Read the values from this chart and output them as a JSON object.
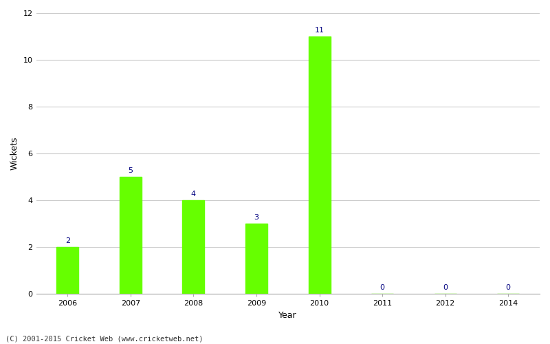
{
  "categories": [
    "2006",
    "2007",
    "2008",
    "2009",
    "2010",
    "2011",
    "2012",
    "2014"
  ],
  "values": [
    2,
    5,
    4,
    3,
    11,
    0,
    0,
    0
  ],
  "bar_color": "#66ff00",
  "label_color": "#000080",
  "xlabel": "Year",
  "ylabel": "Wickets",
  "ylim": [
    0,
    12
  ],
  "yticks": [
    0,
    2,
    4,
    6,
    8,
    10,
    12
  ],
  "background_color": "#ffffff",
  "grid_color": "#cccccc",
  "footer_text": "(C) 2001-2015 Cricket Web (www.cricketweb.net)",
  "label_fontsize": 8,
  "axis_label_fontsize": 9,
  "tick_fontsize": 8,
  "footer_fontsize": 7.5,
  "bar_width": 0.35
}
